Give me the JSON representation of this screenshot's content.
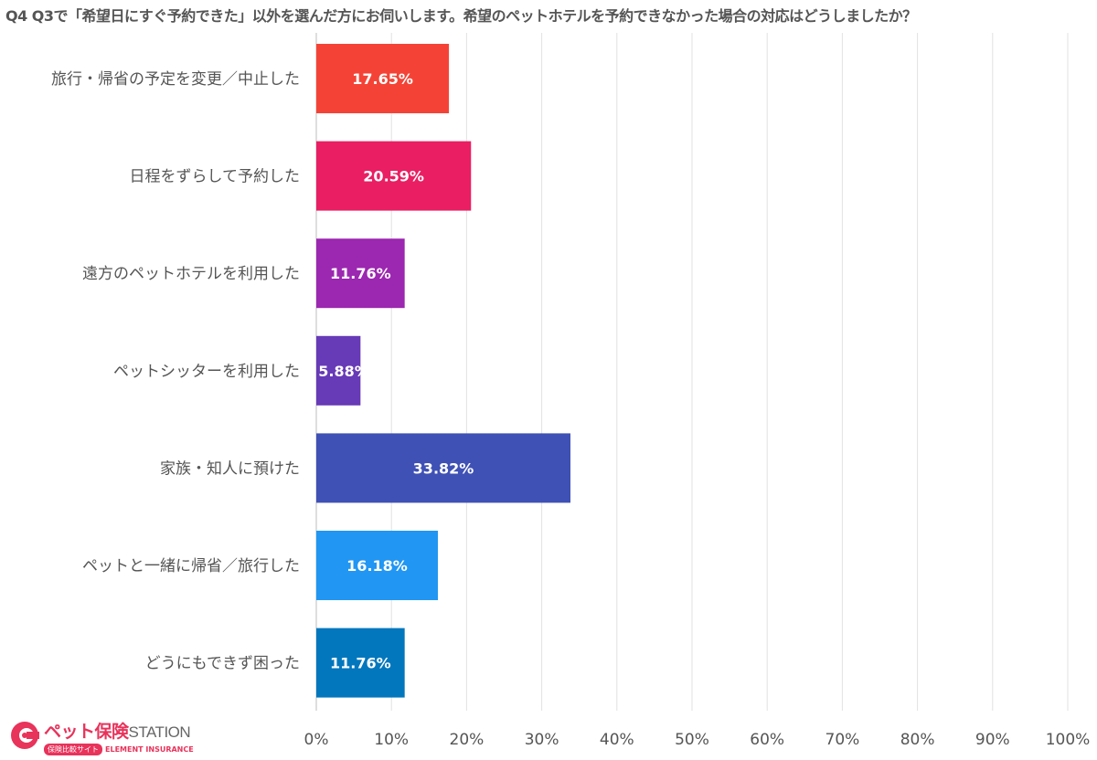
{
  "chart_data": {
    "type": "bar",
    "orientation": "horizontal",
    "title": "Q4 Q3で「希望日にすぐ予約できた」以外を選んだ方にお伺いします。希望のペットホテルを予約できなかった場合の対応はどうしましたか？",
    "categories": [
      "旅行・帰省の予定を変更／中止した",
      "日程をずらして予約した",
      "遠方のペットホテルを利用した",
      "ペットシッターを利用した",
      "家族・知人に預けた",
      "ペットと一緒に帰省／旅行した",
      "どうにもできず困った"
    ],
    "values": [
      17.65,
      20.59,
      11.76,
      5.88,
      33.82,
      16.18,
      11.76
    ],
    "value_labels": [
      "17.65%",
      "20.59%",
      "11.76%",
      "5.88%",
      "33.82%",
      "16.18%",
      "11.76%"
    ],
    "colors": [
      "#f44336",
      "#e91e63",
      "#9c27b0",
      "#673ab7",
      "#3f51b5",
      "#2196f3",
      "#0277bd"
    ],
    "xlim": [
      0,
      100
    ],
    "xticks": [
      "0%",
      "10%",
      "20%",
      "30%",
      "40%",
      "50%",
      "60%",
      "70%",
      "80%",
      "90%",
      "100%"
    ],
    "grid": true
  },
  "logo": {
    "main": "ペット保険",
    "station": "STATION",
    "badge": "保険比較サイト",
    "insurance": "ELEMENT INSURANCE"
  }
}
